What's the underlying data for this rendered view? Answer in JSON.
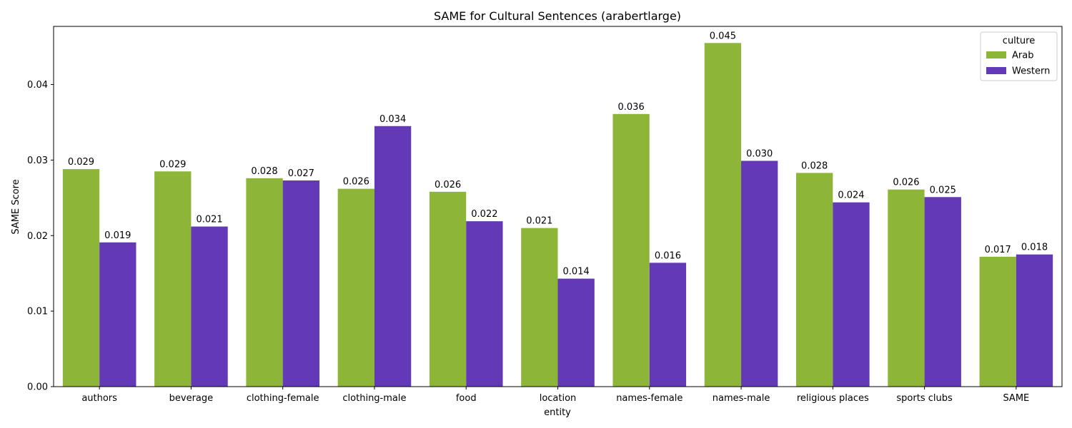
{
  "chart_data": {
    "type": "bar",
    "title": "SAME for Cultural Sentences (arabertlarge)",
    "xlabel": "entity",
    "ylabel": "SAME Score",
    "ylim": [
      0,
      0.0477
    ],
    "yticks": [
      0.0,
      0.01,
      0.02,
      0.03,
      0.04
    ],
    "ytick_labels": [
      "0.00",
      "0.01",
      "0.02",
      "0.03",
      "0.04"
    ],
    "categories": [
      "authors",
      "beverage",
      "clothing-female",
      "clothing-male",
      "food",
      "location",
      "names-female",
      "names-male",
      "religious places",
      "sports clubs",
      "SAME"
    ],
    "series": [
      {
        "name": "Arab",
        "color": "#8db639",
        "values": [
          0.0288,
          0.0285,
          0.0276,
          0.0262,
          0.0258,
          0.021,
          0.0361,
          0.0455,
          0.0283,
          0.0261,
          0.0172
        ],
        "labels": [
          "0.029",
          "0.029",
          "0.028",
          "0.026",
          "0.026",
          "0.021",
          "0.036",
          "0.045",
          "0.028",
          "0.026",
          "0.017"
        ]
      },
      {
        "name": "Western",
        "color": "#6439b7",
        "values": [
          0.0191,
          0.0212,
          0.0273,
          0.0345,
          0.0219,
          0.0143,
          0.0164,
          0.0299,
          0.0244,
          0.0251,
          0.0175
        ],
        "labels": [
          "0.019",
          "0.021",
          "0.027",
          "0.034",
          "0.022",
          "0.014",
          "0.016",
          "0.030",
          "0.024",
          "0.025",
          "0.018"
        ]
      }
    ],
    "legend": {
      "title": "culture",
      "placement": "top-right"
    },
    "grid": false
  }
}
